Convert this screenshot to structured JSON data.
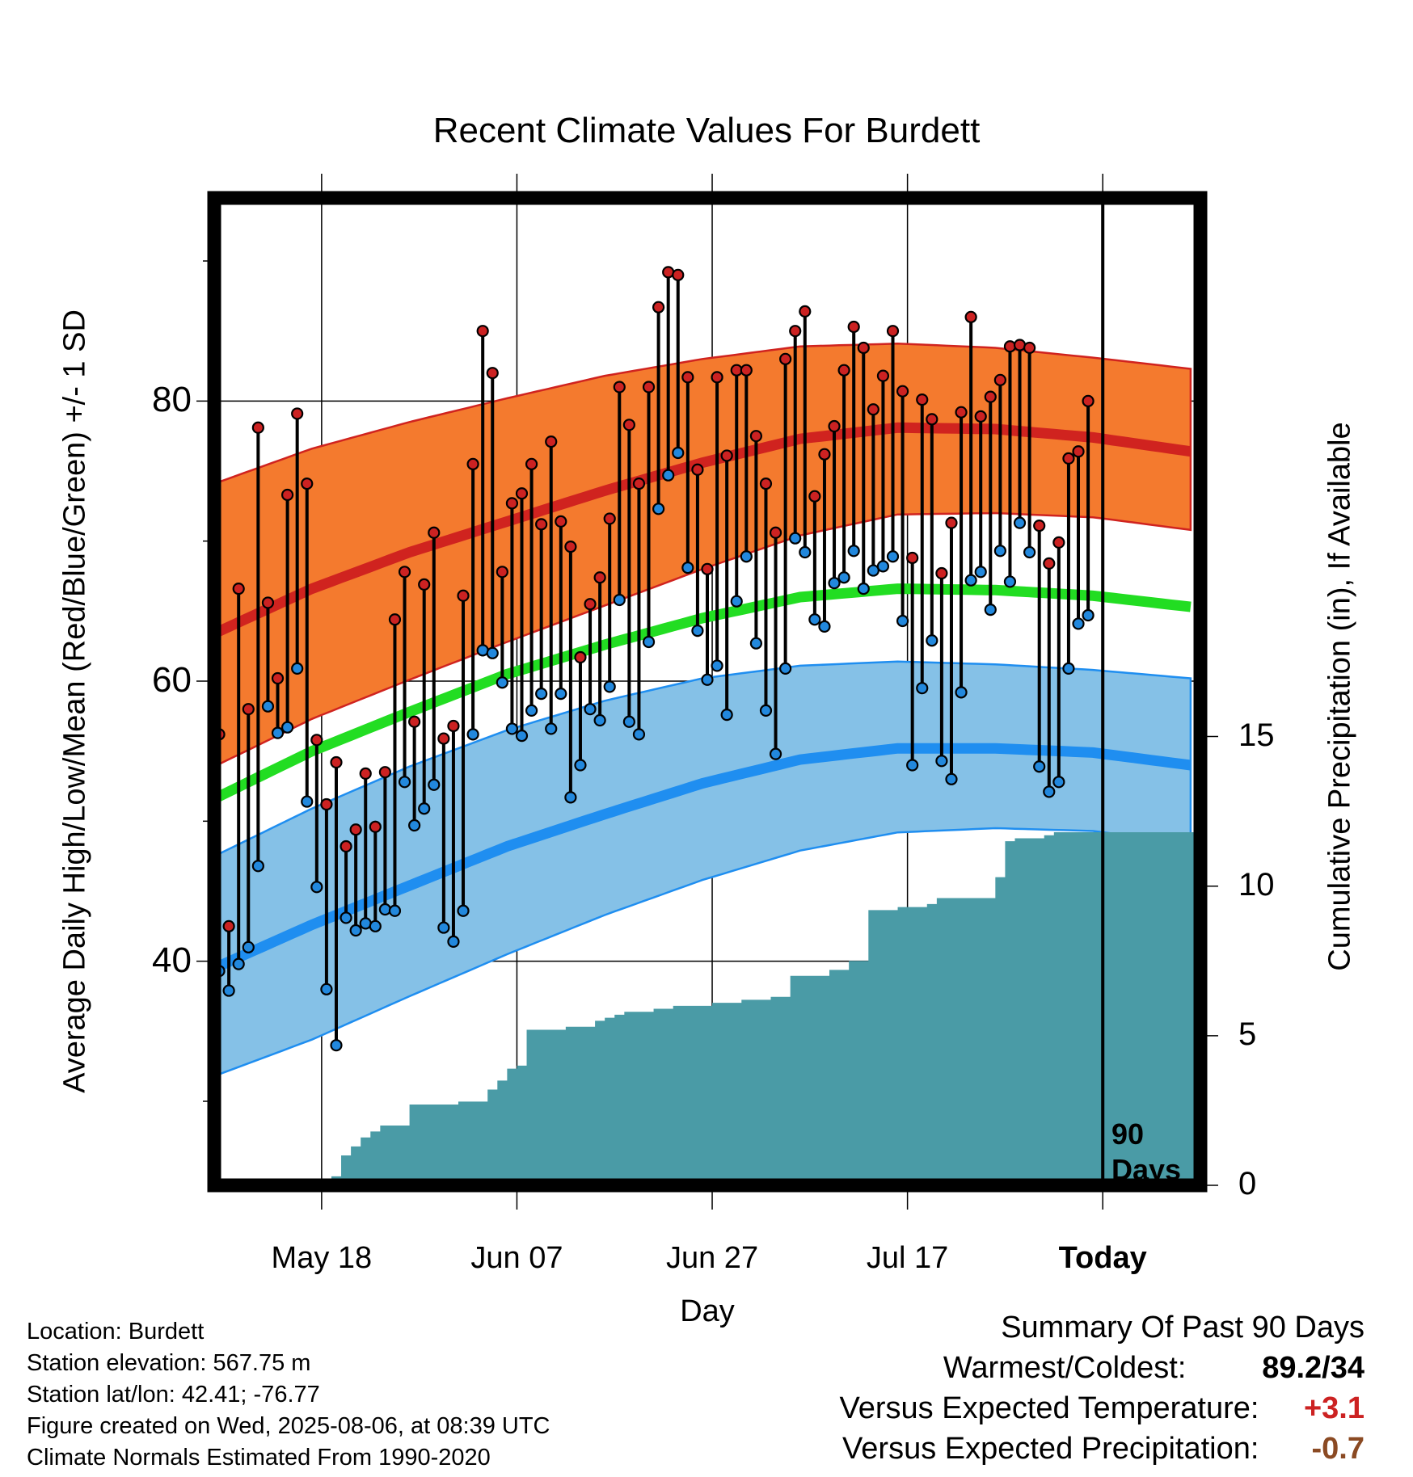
{
  "chart_data": {
    "type": "line",
    "title": "Recent Climate Values For Burdett",
    "xlabel": "Day",
    "ylabel": "Average Daily High/Low/Mean (Red/Blue/Green) +/- 1 SD",
    "y2label": "Cumulative Precipitation (in), If Available",
    "x_tick_labels": [
      "May 18",
      "Jun 07",
      "Jun 27",
      "Jul 17",
      "Today"
    ],
    "x_tick_days": [
      11,
      31,
      51,
      71,
      91
    ],
    "xlim_days": [
      0,
      101
    ],
    "ylim": [
      24,
      94.5
    ],
    "y_ticks": [
      40,
      60,
      80
    ],
    "y_minor_ticks": [
      30,
      50,
      70,
      90
    ],
    "y2lim": [
      0,
      33
    ],
    "y2_ticks": [
      0,
      5,
      10,
      15
    ],
    "grid": true,
    "today_marker": {
      "day": 91,
      "label_top": "90",
      "label_bottom": "Days"
    },
    "normals": {
      "days": [
        0,
        10,
        20,
        30,
        40,
        50,
        60,
        70,
        80,
        90,
        100
      ],
      "high_mean": [
        63.4,
        66.6,
        69.2,
        71.4,
        73.6,
        75.6,
        77.3,
        78.1,
        78.0,
        77.4,
        76.4
      ],
      "high_upper": [
        74.1,
        76.6,
        78.5,
        80.2,
        81.8,
        83.0,
        83.9,
        84.1,
        83.8,
        83.1,
        82.3
      ],
      "high_lower": [
        53.9,
        57.3,
        60.1,
        62.8,
        65.4,
        68.0,
        70.4,
        71.9,
        72.0,
        71.7,
        70.8
      ],
      "mean": [
        51.6,
        55.0,
        57.8,
        60.5,
        62.6,
        64.5,
        66.0,
        66.6,
        66.5,
        66.1,
        65.3
      ],
      "low_mean": [
        39.5,
        42.6,
        45.4,
        48.2,
        50.5,
        52.7,
        54.4,
        55.2,
        55.2,
        54.9,
        54.0
      ],
      "low_upper": [
        47.5,
        50.9,
        53.9,
        56.5,
        58.6,
        60.2,
        61.1,
        61.4,
        61.2,
        60.8,
        60.2
      ],
      "low_lower": [
        31.8,
        34.4,
        37.5,
        40.5,
        43.3,
        45.8,
        47.9,
        49.2,
        49.5,
        49.3,
        48.4
      ]
    },
    "series": [
      {
        "name": "High",
        "color": "#cc2222",
        "days": [
          0,
          1,
          2,
          3,
          4,
          5,
          6,
          7,
          8,
          9,
          10,
          11,
          12,
          13,
          14,
          15,
          16,
          17,
          18,
          19,
          20,
          21,
          22,
          23,
          24,
          25,
          26,
          27,
          28,
          29,
          30,
          31,
          32,
          33,
          34,
          35,
          36,
          37,
          38,
          39,
          40,
          41,
          42,
          43,
          44,
          45,
          46,
          47,
          48,
          49,
          50,
          51,
          52,
          53,
          54,
          55,
          56,
          57,
          58,
          59,
          60,
          61,
          62,
          63,
          64,
          65,
          66,
          67,
          68,
          69,
          70,
          71,
          72,
          73,
          74,
          75,
          76,
          77,
          78,
          79,
          80,
          81,
          82,
          83,
          84,
          85,
          86,
          87,
          88,
          89,
          90
        ],
        "values": [
          56.2,
          42.5,
          66.6,
          58.0,
          78.1,
          65.6,
          60.2,
          73.3,
          79.1,
          74.1,
          55.8,
          51.2,
          54.2,
          48.2,
          49.4,
          53.4,
          49.6,
          53.5,
          64.4,
          67.8,
          57.1,
          66.9,
          70.6,
          55.9,
          56.8,
          66.1,
          75.5,
          85.0,
          82.0,
          67.8,
          72.7,
          73.4,
          75.5,
          71.2,
          77.1,
          71.4,
          69.6,
          61.7,
          65.5,
          67.4,
          71.6,
          81.0,
          78.3,
          74.1,
          81.0,
          86.7,
          89.2,
          89.0,
          81.7,
          75.1,
          68.0,
          81.7,
          76.1,
          82.2,
          82.2,
          77.5,
          74.1,
          70.6,
          83.0,
          85.0,
          86.4,
          73.2,
          76.2,
          78.2,
          82.2,
          85.3,
          83.8,
          79.4,
          81.8,
          85.0,
          80.7,
          68.8,
          80.1,
          78.7,
          67.7,
          71.3,
          79.2,
          86.0,
          78.9,
          80.3,
          81.5,
          83.9,
          84.0,
          83.8,
          71.1,
          68.4,
          69.9,
          75.9,
          76.4,
          80.0,
          null
        ]
      },
      {
        "name": "Low",
        "color": "#2288dd",
        "days": [
          0,
          1,
          2,
          3,
          4,
          5,
          6,
          7,
          8,
          9,
          10,
          11,
          12,
          13,
          14,
          15,
          16,
          17,
          18,
          19,
          20,
          21,
          22,
          23,
          24,
          25,
          26,
          27,
          28,
          29,
          30,
          31,
          32,
          33,
          34,
          35,
          36,
          37,
          38,
          39,
          40,
          41,
          42,
          43,
          44,
          45,
          46,
          47,
          48,
          49,
          50,
          51,
          52,
          53,
          54,
          55,
          56,
          57,
          58,
          59,
          60,
          61,
          62,
          63,
          64,
          65,
          66,
          67,
          68,
          69,
          70,
          71,
          72,
          73,
          74,
          75,
          76,
          77,
          78,
          79,
          80,
          81,
          82,
          83,
          84,
          85,
          86,
          87,
          88,
          89,
          90
        ],
        "values": [
          39.3,
          37.9,
          39.8,
          41.0,
          46.8,
          58.2,
          56.3,
          56.7,
          60.9,
          51.4,
          45.3,
          38.0,
          34.0,
          43.1,
          42.2,
          42.7,
          42.5,
          43.7,
          43.6,
          52.8,
          49.7,
          50.9,
          52.6,
          42.4,
          41.4,
          43.6,
          56.2,
          62.2,
          62.0,
          59.9,
          56.6,
          56.1,
          57.9,
          59.1,
          56.6,
          59.1,
          51.7,
          54.0,
          58.0,
          57.2,
          59.6,
          65.8,
          57.1,
          56.2,
          62.8,
          72.3,
          74.7,
          76.3,
          68.1,
          63.6,
          60.1,
          61.1,
          57.6,
          65.7,
          68.9,
          62.7,
          57.9,
          54.8,
          60.9,
          70.2,
          69.2,
          64.4,
          63.9,
          67.0,
          67.4,
          69.3,
          66.6,
          67.9,
          68.2,
          68.9,
          64.3,
          54.0,
          59.5,
          62.9,
          54.3,
          53.0,
          59.2,
          67.2,
          67.8,
          65.1,
          69.3,
          67.1,
          71.3,
          69.2,
          53.9,
          52.1,
          52.8,
          60.9,
          64.1,
          64.7,
          null
        ]
      }
    ],
    "precip_cumulative": {
      "days": [
        9,
        10,
        12,
        13,
        14,
        15,
        16,
        17,
        18,
        19,
        20,
        21,
        25,
        26,
        27,
        28,
        29,
        30,
        31,
        32,
        33,
        34,
        35,
        36,
        37,
        38,
        39,
        40,
        41,
        42,
        43,
        44,
        45,
        46,
        47,
        48,
        49,
        50,
        51,
        52,
        53,
        54,
        55,
        56,
        57,
        58,
        59,
        60,
        61,
        62,
        63,
        64,
        65,
        66,
        67,
        68,
        69,
        70,
        71,
        72,
        73,
        74,
        75,
        76,
        77,
        78,
        79,
        80,
        81,
        82,
        83,
        84,
        85,
        86,
        87,
        88,
        89,
        90,
        91,
        92,
        93,
        94,
        95,
        96,
        97,
        98,
        99,
        100
      ],
      "values": [
        0.0,
        0.2,
        0.3,
        1.0,
        1.3,
        1.6,
        1.8,
        2.0,
        2.0,
        2.0,
        2.7,
        2.7,
        2.8,
        2.8,
        2.8,
        3.2,
        3.5,
        3.9,
        4.0,
        5.2,
        5.2,
        5.2,
        5.2,
        5.3,
        5.3,
        5.3,
        5.5,
        5.6,
        5.7,
        5.8,
        5.8,
        5.8,
        5.9,
        5.9,
        6.0,
        6.0,
        6.0,
        6.0,
        6.1,
        6.1,
        6.1,
        6.2,
        6.2,
        6.2,
        6.3,
        6.3,
        7.0,
        7.0,
        7.0,
        7.0,
        7.2,
        7.2,
        7.5,
        7.5,
        9.2,
        9.2,
        9.2,
        9.3,
        9.3,
        9.3,
        9.4,
        9.6,
        9.6,
        9.6,
        9.6,
        9.6,
        9.6,
        10.3,
        11.5,
        11.6,
        11.6,
        11.6,
        11.7,
        11.8,
        11.8,
        11.8,
        11.8,
        11.8,
        11.8,
        11.8,
        11.8,
        11.8,
        11.8,
        11.8,
        11.8,
        11.8,
        11.8,
        11.8
      ]
    }
  },
  "info": {
    "location": "Location: Burdett",
    "elevation": "Station elevation: 567.75 m",
    "latlon": "Station lat/lon: 42.41; -76.77",
    "created": "Figure created on Wed, 2025-08-06, at 08:39 UTC",
    "normals": "Climate Normals Estimated From 1990-2020"
  },
  "summary": {
    "title": "Summary Of Past 90 Days",
    "warmest_label": "Warmest/Coldest:",
    "warmest_value": "89.2/34",
    "temp_label": "Versus Expected Temperature:",
    "temp_value": "+3.1",
    "temp_color": "#cc2222",
    "precip_label": "Versus Expected Precipitation:",
    "precip_value": "-0.7",
    "precip_color": "#8b4a23"
  },
  "colors": {
    "high_band": "#f47a2e",
    "high_line": "#d0231f",
    "low_band": "#85c1e7",
    "low_line": "#1f8ef0",
    "mean_line": "#22dd22",
    "precip_fill": "#4a9ba6"
  }
}
